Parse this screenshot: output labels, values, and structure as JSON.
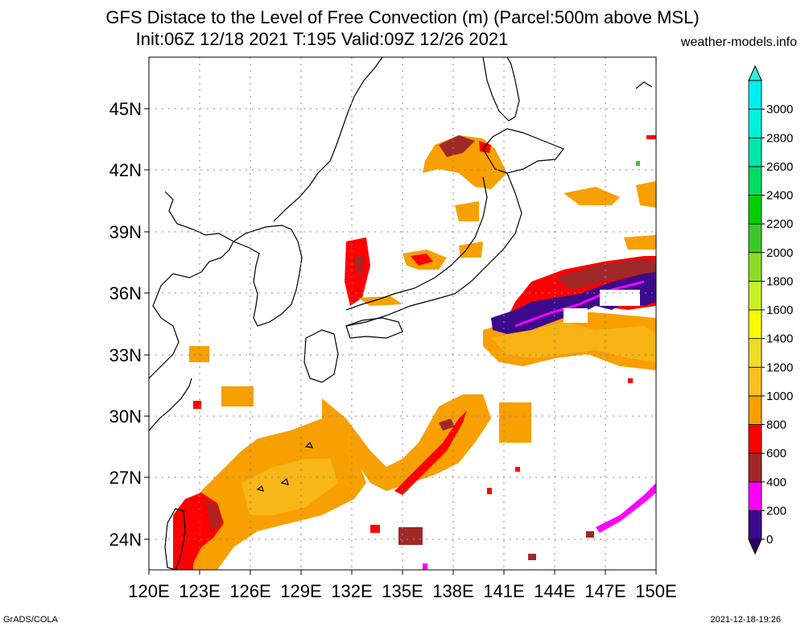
{
  "title_line1": "GFS Distace to the Level of Free Convection (m) (Parcel:500m above MSL)",
  "title_line2": "Init:06Z 12/18 2021 T:195 Valid:09Z 12/26 2021",
  "site": "weather-models.info",
  "footer_left": "GrADS/COLA",
  "footer_right": "2021-12-18-19:26",
  "map": {
    "lon_range": [
      120,
      150
    ],
    "lat_range": [
      22.5,
      47.5
    ],
    "x_ticks": [
      "120E",
      "123E",
      "126E",
      "129E",
      "132E",
      "135E",
      "138E",
      "141E",
      "144E",
      "147E",
      "150E"
    ],
    "y_ticks": [
      "24N",
      "27N",
      "30N",
      "33N",
      "36N",
      "39N",
      "42N",
      "45N"
    ],
    "gridlines": "dotted"
  },
  "colorbar": {
    "labels": [
      "0",
      "200",
      "400",
      "600",
      "800",
      "1000",
      "1200",
      "1400",
      "1600",
      "1800",
      "2000",
      "2200",
      "2400",
      "2600",
      "2800",
      "3000"
    ],
    "colors": [
      "#3c0a8c",
      "#ff00ff",
      "#a02828",
      "#ff0000",
      "#f7a000",
      "#f7c020",
      "#f0dc28",
      "#fafa00",
      "#c8f028",
      "#8cdc28",
      "#3cc828",
      "#00d000",
      "#00dc64",
      "#00e6aa",
      "#00f0dc",
      "#00f0f0"
    ],
    "extend_top": "#33eedd",
    "extend_bottom": "#2a0060"
  }
}
